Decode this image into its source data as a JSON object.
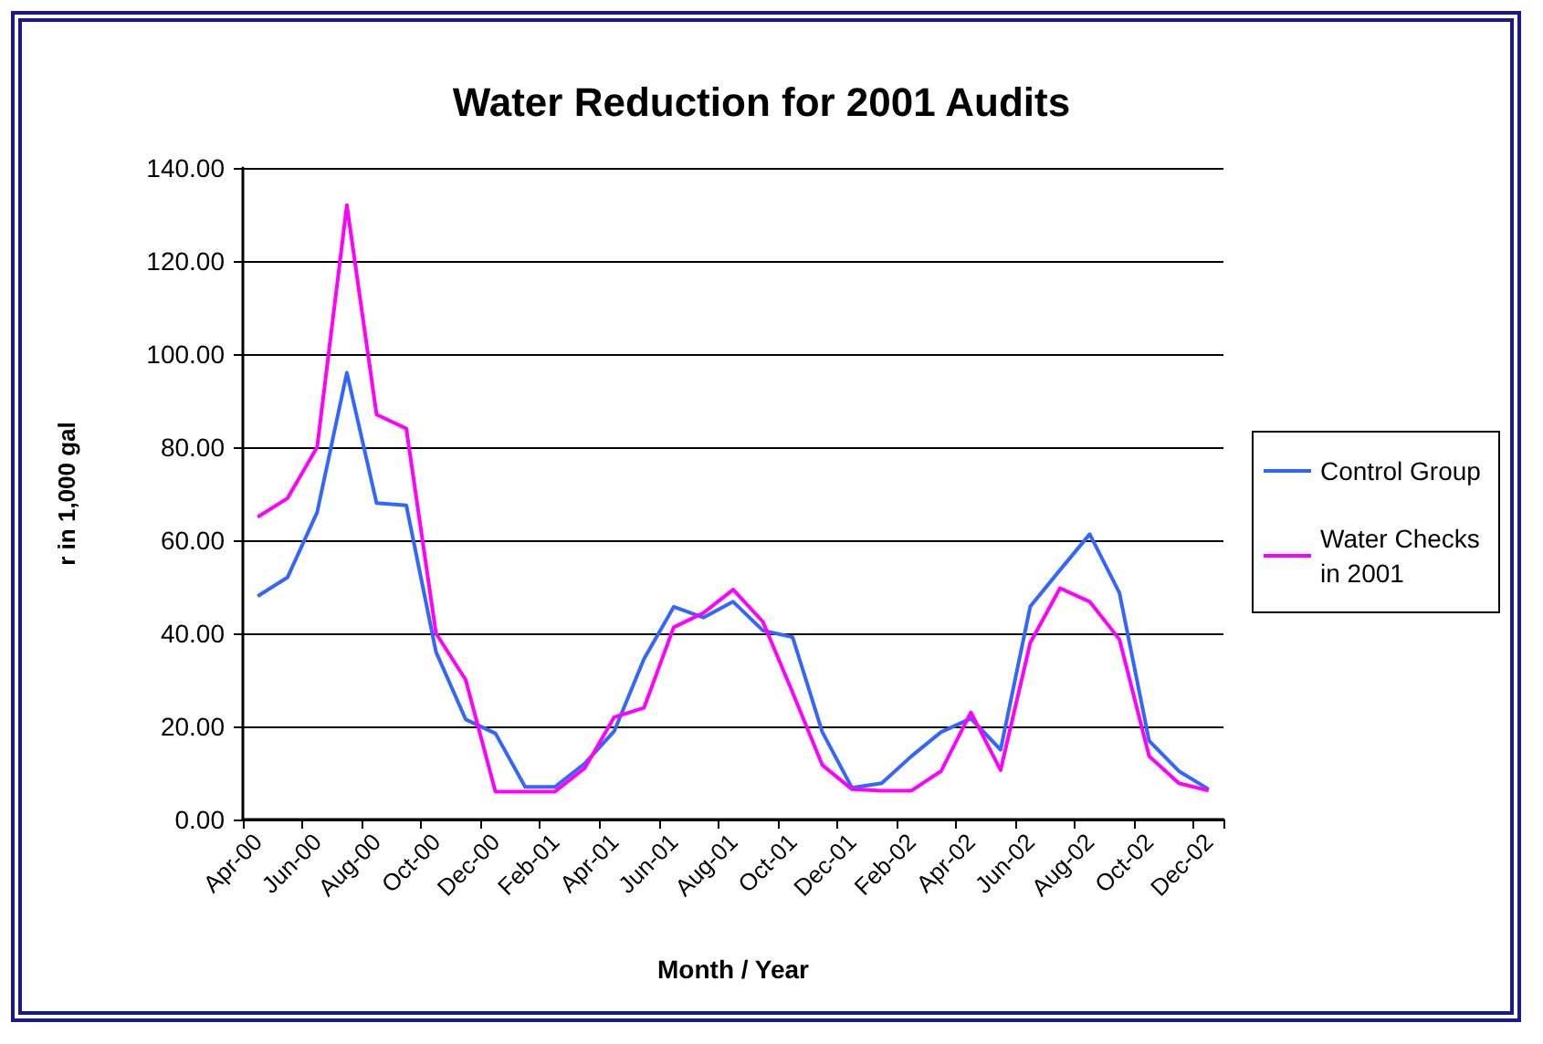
{
  "chart_data": {
    "type": "line",
    "title": "Water Reduction for 2001 Audits",
    "xlabel": "Month / Year",
    "ylabel": "r in 1,000 gal",
    "categories": [
      "Apr-00",
      null,
      "Jun-00",
      null,
      "Aug-00",
      null,
      "Oct-00",
      null,
      "Dec-00",
      null,
      "Feb-01",
      null,
      "Apr-01",
      null,
      "Jun-01",
      null,
      "Aug-01",
      null,
      "Oct-01",
      null,
      "Dec-01",
      null,
      "Feb-02",
      null,
      "Apr-02",
      null,
      "Jun-02",
      null,
      "Aug-02",
      null,
      "Oct-02",
      null,
      "Dec-02"
    ],
    "series": [
      {
        "name": "Control Group",
        "color": "#3366ff",
        "values": [
          48,
          52,
          66,
          96,
          68,
          67.5,
          36,
          21.5,
          18.5,
          7,
          7,
          12,
          19,
          34.5,
          45.7,
          43.4,
          46.8,
          40.6,
          39.2,
          18.8,
          6.8,
          7.8,
          13.6,
          18.8,
          21.7,
          15,
          45.8,
          53.6,
          61.3,
          48.7,
          16.9,
          10.4,
          6.5
        ]
      },
      {
        "name": "Water Checks in 2001",
        "color": "#ff00ff",
        "values": [
          65,
          69,
          80,
          132,
          87,
          84,
          40,
          30,
          6,
          6,
          6,
          11,
          22,
          24,
          41.3,
          44.4,
          49.4,
          42.5,
          27.3,
          11.7,
          6.5,
          6.2,
          6.2,
          10.4,
          23,
          10.6,
          38,
          49.7,
          46.8,
          38.7,
          13.6,
          7.8,
          6.2
        ]
      }
    ],
    "ylim": [
      0,
      140
    ],
    "yticks": [
      {
        "value": 0,
        "label": "0.00"
      },
      {
        "value": 20,
        "label": "20.00"
      },
      {
        "value": 40,
        "label": "40.00"
      },
      {
        "value": 60,
        "label": "60.00"
      },
      {
        "value": 80,
        "label": "80.00"
      },
      {
        "value": 100,
        "label": "100.00"
      },
      {
        "value": 120,
        "label": "120.00"
      },
      {
        "value": 140,
        "label": "140.00"
      }
    ],
    "grid": "y",
    "legend": "right",
    "marker": "none",
    "line_style": "solid"
  }
}
